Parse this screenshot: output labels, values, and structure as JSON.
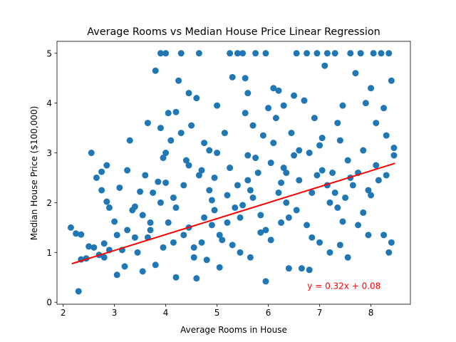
{
  "chart_data": {
    "type": "scatter",
    "title": "Average Rooms vs Median House Price Linear Regression",
    "xlabel": "Average Rooms in House",
    "ylabel": "Median House Price ($100,000)",
    "xlim": [
      1.88,
      8.77
    ],
    "ylim": [
      -0.04,
      5.24
    ],
    "xticks": [
      2,
      3,
      4,
      5,
      6,
      7,
      8
    ],
    "yticks": [
      0,
      1,
      2,
      3,
      4,
      5
    ],
    "series": [
      {
        "name": "",
        "kind": "scatter",
        "color": "#1f77b4",
        "points": [
          [
            2.15,
            1.5
          ],
          [
            2.25,
            1.38
          ],
          [
            2.3,
            0.22
          ],
          [
            2.35,
            1.36
          ],
          [
            2.35,
            0.86
          ],
          [
            2.45,
            0.88
          ],
          [
            2.5,
            1.12
          ],
          [
            2.55,
            3.0
          ],
          [
            2.65,
            2.5
          ],
          [
            2.75,
            2.62
          ],
          [
            2.8,
            1.18
          ],
          [
            2.8,
            0.9
          ],
          [
            2.75,
            2.25
          ],
          [
            2.85,
            2.75
          ],
          [
            2.9,
            1.9
          ],
          [
            2.85,
            2.02
          ],
          [
            3.0,
            1.62
          ],
          [
            3.05,
            1.35
          ],
          [
            3.05,
            0.55
          ],
          [
            3.1,
            2.3
          ],
          [
            3.2,
            0.72
          ],
          [
            3.25,
            2.65
          ],
          [
            3.3,
            3.25
          ],
          [
            3.35,
            1.85
          ],
          [
            3.4,
            1.92
          ],
          [
            3.45,
            1.0
          ],
          [
            3.5,
            2.22
          ],
          [
            3.55,
            0.62
          ],
          [
            3.6,
            2.55
          ],
          [
            3.65,
            3.6
          ],
          [
            3.7,
            1.45
          ],
          [
            3.75,
            2.2
          ],
          [
            3.8,
            4.65
          ],
          [
            3.85,
            2.42
          ],
          [
            3.9,
            3.5
          ],
          [
            3.9,
            5.0
          ],
          [
            3.95,
            2.9
          ],
          [
            4.0,
            5.0
          ],
          [
            4.0,
            3.0
          ],
          [
            4.05,
            3.8
          ],
          [
            4.1,
            3.25
          ],
          [
            4.15,
            1.2
          ],
          [
            4.2,
            3.82
          ],
          [
            4.2,
            0.5
          ],
          [
            4.25,
            4.45
          ],
          [
            4.3,
            3.4
          ],
          [
            4.3,
            5.0
          ],
          [
            4.35,
            2.35
          ],
          [
            4.4,
            2.85
          ],
          [
            4.45,
            4.2
          ],
          [
            4.5,
            3.55
          ],
          [
            4.55,
            1.1
          ],
          [
            4.6,
            4.1
          ],
          [
            4.6,
            0.48
          ],
          [
            4.65,
            5.0
          ],
          [
            4.7,
            2.65
          ],
          [
            4.75,
            3.2
          ],
          [
            4.8,
            0.85
          ],
          [
            4.85,
            3.05
          ],
          [
            4.9,
            1.55
          ],
          [
            4.95,
            2.5
          ],
          [
            5.0,
            3.95
          ],
          [
            5.0,
            3.0
          ],
          [
            5.05,
            0.7
          ],
          [
            5.1,
            1.25
          ],
          [
            5.15,
            3.4
          ],
          [
            5.2,
            2.15
          ],
          [
            5.25,
            5.0
          ],
          [
            5.3,
            4.52
          ],
          [
            5.35,
            1.9
          ],
          [
            5.4,
            5.0
          ],
          [
            5.45,
            1.0
          ],
          [
            5.5,
            5.0
          ],
          [
            5.55,
            4.5
          ],
          [
            5.55,
            3.8
          ],
          [
            5.6,
            4.2
          ],
          [
            5.6,
            2.95
          ],
          [
            5.65,
            0.9
          ],
          [
            5.7,
            3.55
          ],
          [
            5.75,
            5.0
          ],
          [
            5.8,
            2.6
          ],
          [
            5.85,
            1.4
          ],
          [
            5.9,
            3.35
          ],
          [
            5.95,
            5.0
          ],
          [
            5.95,
            0.42
          ],
          [
            6.0,
            3.9
          ],
          [
            6.05,
            2.8
          ],
          [
            6.1,
            4.3
          ],
          [
            6.15,
            3.7
          ],
          [
            6.2,
            4.25
          ],
          [
            6.25,
            1.6
          ],
          [
            6.3,
            3.95
          ],
          [
            6.35,
            2.6
          ],
          [
            6.4,
            0.68
          ],
          [
            6.45,
            3.4
          ],
          [
            6.5,
            4.15
          ],
          [
            6.55,
            5.0
          ],
          [
            6.6,
            3.05
          ],
          [
            6.65,
            0.68
          ],
          [
            6.7,
            4.05
          ],
          [
            6.75,
            5.0
          ],
          [
            6.8,
            0.65
          ],
          [
            6.85,
            2.2
          ],
          [
            6.9,
            3.7
          ],
          [
            6.95,
            5.0
          ],
          [
            7.0,
            1.2
          ],
          [
            7.05,
            3.3
          ],
          [
            7.1,
            4.75
          ],
          [
            7.15,
            5.0
          ],
          [
            7.2,
            1.0
          ],
          [
            7.25,
            2.6
          ],
          [
            7.3,
            5.0
          ],
          [
            7.35,
            3.6
          ],
          [
            7.4,
            1.15
          ],
          [
            7.45,
            3.95
          ],
          [
            7.5,
            2.1
          ],
          [
            7.55,
            0.9
          ],
          [
            7.6,
            5.0
          ],
          [
            7.65,
            2.35
          ],
          [
            7.7,
            4.6
          ],
          [
            7.75,
            1.55
          ],
          [
            7.8,
            5.0
          ],
          [
            7.85,
            3.05
          ],
          [
            7.9,
            4.0
          ],
          [
            7.95,
            1.35
          ],
          [
            8.0,
            4.3
          ],
          [
            8.05,
            5.0
          ],
          [
            8.1,
            3.6
          ],
          [
            8.15,
            2.45
          ],
          [
            8.2,
            5.0
          ],
          [
            8.25,
            1.35
          ],
          [
            8.3,
            3.35
          ],
          [
            8.35,
            5.0
          ],
          [
            8.35,
            1.0
          ],
          [
            8.4,
            4.45
          ],
          [
            8.45,
            2.95
          ],
          [
            8.45,
            3.1
          ],
          [
            8.4,
            1.2
          ],
          [
            8.3,
            2.55
          ],
          [
            8.25,
            3.9
          ],
          [
            8.0,
            2.15
          ],
          [
            7.85,
            1.8
          ],
          [
            7.6,
            2.5
          ],
          [
            7.45,
            1.62
          ],
          [
            7.2,
            2.0
          ],
          [
            7.05,
            2.65
          ],
          [
            6.85,
            1.3
          ],
          [
            6.6,
            2.45
          ],
          [
            6.4,
            1.7
          ],
          [
            6.2,
            2.2
          ],
          [
            5.95,
            1.45
          ],
          [
            5.7,
            2.1
          ],
          [
            5.45,
            1.7
          ],
          [
            5.2,
            1.6
          ],
          [
            4.95,
            1.85
          ],
          [
            4.7,
            1.2
          ],
          [
            4.45,
            1.5
          ],
          [
            4.2,
            1.9
          ],
          [
            3.95,
            1.1
          ],
          [
            3.7,
            1.6
          ],
          [
            3.4,
            1.3
          ],
          [
            3.15,
            1.05
          ],
          [
            2.9,
            1.05
          ],
          [
            2.7,
            0.95
          ],
          [
            3.8,
            0.75
          ],
          [
            4.55,
            0.9
          ],
          [
            5.3,
            1.15
          ],
          [
            6.05,
            1.25
          ],
          [
            6.75,
            1.55
          ],
          [
            7.35,
            1.9
          ],
          [
            7.95,
            2.25
          ],
          [
            5.6,
            2.45
          ],
          [
            4.85,
            2.25
          ],
          [
            4.15,
            2.1
          ],
          [
            3.55,
            1.75
          ],
          [
            6.35,
            2.0
          ],
          [
            7.15,
            2.35
          ],
          [
            7.75,
            2.6
          ],
          [
            5.05,
            1.35
          ],
          [
            4.35,
            1.35
          ],
          [
            3.65,
            1.3
          ],
          [
            5.85,
            1.75
          ],
          [
            6.55,
            1.85
          ],
          [
            7.3,
            2.2
          ],
          [
            2.6,
            1.1
          ],
          [
            3.25,
            1.45
          ],
          [
            4.05,
            1.6
          ],
          [
            4.75,
            1.7
          ],
          [
            5.5,
            1.95
          ],
          [
            6.25,
            2.4
          ],
          [
            6.95,
            2.55
          ],
          [
            7.55,
            2.85
          ],
          [
            8.1,
            2.75
          ],
          [
            5.75,
            2.9
          ],
          [
            5.25,
            2.7
          ],
          [
            4.65,
            2.55
          ],
          [
            4.0,
            2.4
          ],
          [
            6.5,
            2.95
          ],
          [
            7.0,
            3.15
          ],
          [
            6.1,
            3.2
          ],
          [
            4.45,
            2.75
          ],
          [
            5.4,
            2.35
          ],
          [
            3.9,
            2.0
          ],
          [
            4.9,
            2.05
          ],
          [
            5.65,
            2.25
          ],
          [
            6.3,
            2.7
          ],
          [
            6.8,
            3.0
          ],
          [
            7.4,
            3.25
          ]
        ]
      },
      {
        "name": "",
        "kind": "line",
        "color": "#ff0000",
        "x": [
          2.17,
          8.47
        ],
        "y": [
          0.774,
          2.79
        ]
      }
    ],
    "annotations": [
      {
        "text": "y = 0.32x + 0.08",
        "x": 6.76,
        "y": 0.27,
        "color": "#ff0000"
      }
    ]
  }
}
